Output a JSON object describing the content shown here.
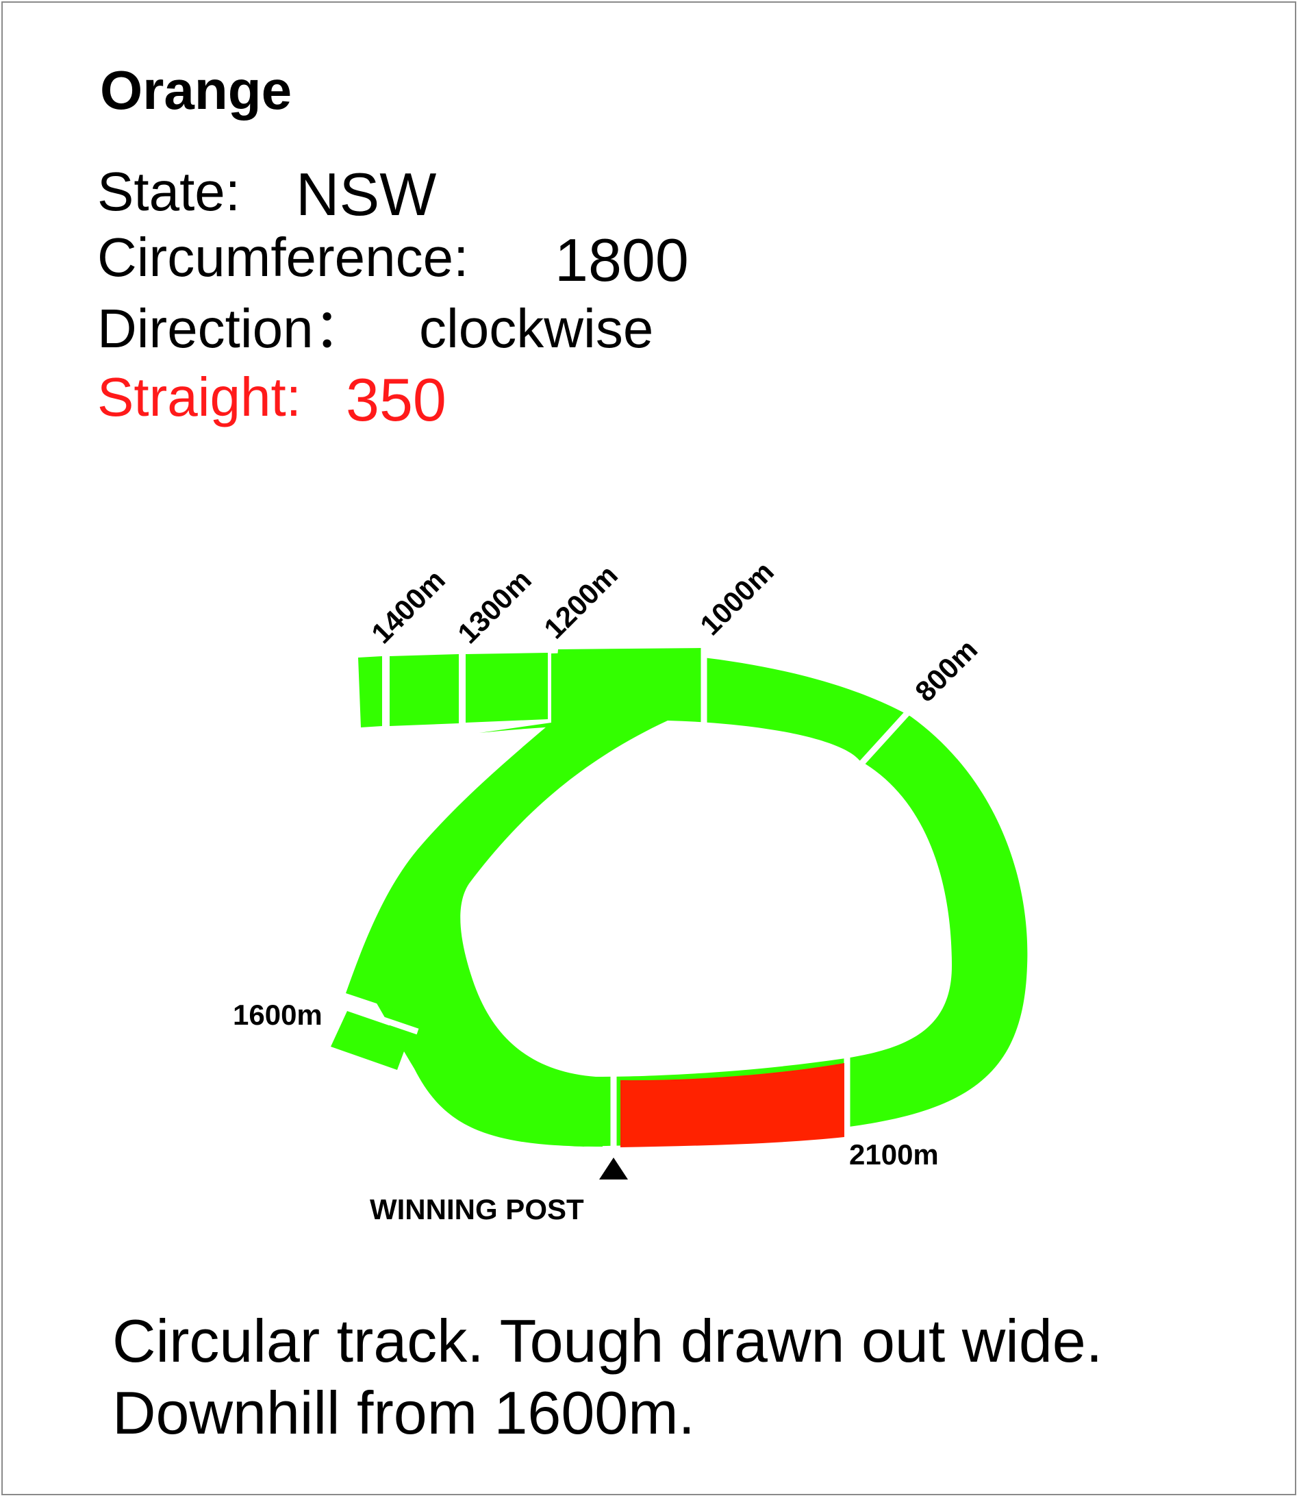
{
  "title": "Orange",
  "info": {
    "state_label": "State:",
    "state_value": "NSW",
    "circumference_label": "Circumference:",
    "circumference_value": "1800",
    "direction_label": "Direction：",
    "direction_value": "clockwise",
    "straight_label": "Straight:",
    "straight_value": "350"
  },
  "markers": [
    "1400m",
    "1300m",
    "1200m",
    "1000m",
    "800m",
    "1600m",
    "2100m"
  ],
  "winning_post": "WINNING POST",
  "notes": [
    "Circular track. Tough drawn out wide.",
    "Downhill from 1600m."
  ],
  "colors": {
    "track": "#33ff00",
    "straight": "#ff2200",
    "straight_text": "#ff1a1a"
  }
}
